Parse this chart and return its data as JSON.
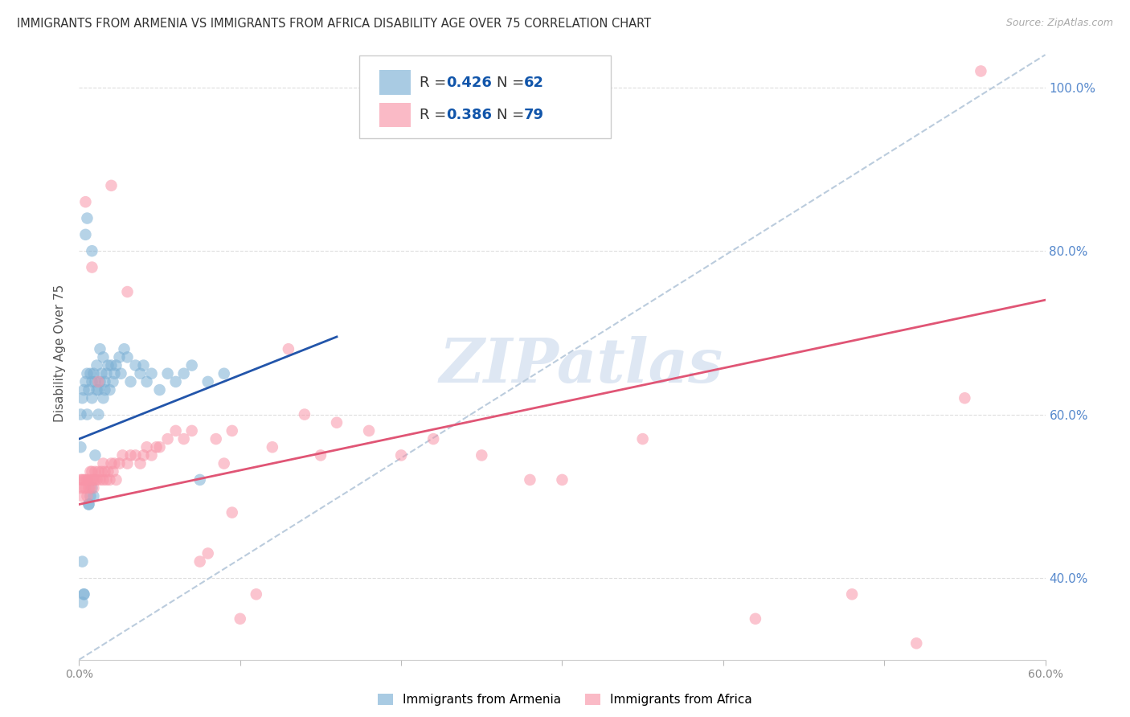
{
  "title": "IMMIGRANTS FROM ARMENIA VS IMMIGRANTS FROM AFRICA DISABILITY AGE OVER 75 CORRELATION CHART",
  "source": "Source: ZipAtlas.com",
  "ylabel": "Disability Age Over 75",
  "xlim": [
    0.0,
    0.6
  ],
  "ylim": [
    0.3,
    1.05
  ],
  "xtick_positions": [
    0.0,
    0.1,
    0.2,
    0.3,
    0.4,
    0.5,
    0.6
  ],
  "xtick_labels": [
    "0.0%",
    "",
    "",
    "",
    "",
    "",
    "60.0%"
  ],
  "ytick_positions": [
    0.4,
    0.6,
    0.8,
    1.0
  ],
  "ytick_labels": [
    "40.0%",
    "60.0%",
    "80.0%",
    "100.0%"
  ],
  "armenia_R": 0.426,
  "armenia_N": 62,
  "africa_R": 0.386,
  "africa_N": 79,
  "armenia_color": "#7BAFD4",
  "africa_color": "#F895A8",
  "trendline_armenia_color": "#2255AA",
  "trendline_africa_color": "#E05575",
  "diagonal_color": "#BBCCDD",
  "background_color": "#FFFFFF",
  "grid_color": "#DDDDDD",
  "title_color": "#333333",
  "ytick_color": "#5588CC",
  "bottom_legend_armenia": "Immigrants from Armenia",
  "bottom_legend_africa": "Immigrants from Africa",
  "watermark": "ZIPatlas",
  "watermark_color": "#C8D8EC",
  "legend_text_color": "#1155AA",
  "legend_N_color": "#1155AA",
  "armenia_x": [
    0.001,
    0.001,
    0.002,
    0.002,
    0.003,
    0.003,
    0.004,
    0.004,
    0.005,
    0.005,
    0.005,
    0.006,
    0.006,
    0.007,
    0.007,
    0.008,
    0.008,
    0.008,
    0.009,
    0.009,
    0.01,
    0.01,
    0.011,
    0.011,
    0.012,
    0.012,
    0.013,
    0.013,
    0.014,
    0.015,
    0.015,
    0.016,
    0.016,
    0.017,
    0.018,
    0.019,
    0.02,
    0.021,
    0.022,
    0.023,
    0.025,
    0.026,
    0.028,
    0.03,
    0.032,
    0.035,
    0.038,
    0.04,
    0.042,
    0.045,
    0.05,
    0.055,
    0.06,
    0.065,
    0.07,
    0.075,
    0.08,
    0.09,
    0.002,
    0.003,
    0.006,
    0.008
  ],
  "armenia_y": [
    0.56,
    0.6,
    0.62,
    0.37,
    0.63,
    0.38,
    0.64,
    0.82,
    0.65,
    0.6,
    0.84,
    0.63,
    0.49,
    0.65,
    0.5,
    0.64,
    0.62,
    0.8,
    0.65,
    0.5,
    0.64,
    0.55,
    0.63,
    0.66,
    0.63,
    0.6,
    0.64,
    0.68,
    0.65,
    0.62,
    0.67,
    0.64,
    0.63,
    0.65,
    0.66,
    0.63,
    0.66,
    0.64,
    0.65,
    0.66,
    0.67,
    0.65,
    0.68,
    0.67,
    0.64,
    0.66,
    0.65,
    0.66,
    0.64,
    0.65,
    0.63,
    0.65,
    0.64,
    0.65,
    0.66,
    0.52,
    0.64,
    0.65,
    0.42,
    0.38,
    0.49,
    0.51
  ],
  "africa_x": [
    0.001,
    0.001,
    0.002,
    0.002,
    0.003,
    0.003,
    0.004,
    0.004,
    0.005,
    0.005,
    0.006,
    0.006,
    0.007,
    0.007,
    0.008,
    0.008,
    0.009,
    0.009,
    0.01,
    0.01,
    0.011,
    0.012,
    0.013,
    0.014,
    0.015,
    0.015,
    0.016,
    0.017,
    0.018,
    0.019,
    0.02,
    0.021,
    0.022,
    0.023,
    0.025,
    0.027,
    0.03,
    0.032,
    0.035,
    0.038,
    0.04,
    0.042,
    0.045,
    0.048,
    0.05,
    0.055,
    0.06,
    0.065,
    0.07,
    0.075,
    0.08,
    0.085,
    0.09,
    0.095,
    0.1,
    0.11,
    0.12,
    0.13,
    0.14,
    0.15,
    0.16,
    0.18,
    0.2,
    0.22,
    0.25,
    0.28,
    0.3,
    0.35,
    0.42,
    0.48,
    0.52,
    0.55,
    0.004,
    0.008,
    0.012,
    0.02,
    0.03,
    0.095,
    0.56
  ],
  "africa_y": [
    0.52,
    0.51,
    0.52,
    0.5,
    0.52,
    0.51,
    0.51,
    0.52,
    0.52,
    0.5,
    0.52,
    0.51,
    0.53,
    0.51,
    0.52,
    0.53,
    0.52,
    0.51,
    0.53,
    0.52,
    0.52,
    0.53,
    0.52,
    0.53,
    0.54,
    0.52,
    0.53,
    0.52,
    0.53,
    0.52,
    0.54,
    0.53,
    0.54,
    0.52,
    0.54,
    0.55,
    0.54,
    0.55,
    0.55,
    0.54,
    0.55,
    0.56,
    0.55,
    0.56,
    0.56,
    0.57,
    0.58,
    0.57,
    0.58,
    0.42,
    0.43,
    0.57,
    0.54,
    0.58,
    0.35,
    0.38,
    0.56,
    0.68,
    0.6,
    0.55,
    0.59,
    0.58,
    0.55,
    0.57,
    0.55,
    0.52,
    0.52,
    0.57,
    0.35,
    0.38,
    0.32,
    0.62,
    0.86,
    0.78,
    0.64,
    0.88,
    0.75,
    0.48,
    1.02
  ]
}
